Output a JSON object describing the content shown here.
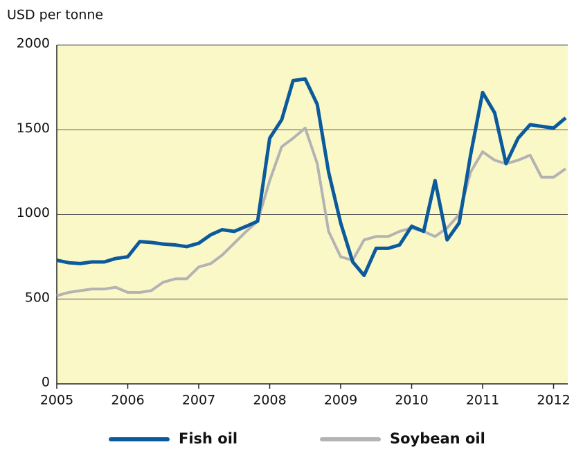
{
  "chart_data": {
    "type": "line",
    "y_label": "USD per tonne",
    "x": [
      2005,
      2005.17,
      2005.33,
      2005.5,
      2005.67,
      2005.83,
      2006,
      2006.17,
      2006.33,
      2006.5,
      2006.67,
      2006.83,
      2007,
      2007.17,
      2007.33,
      2007.5,
      2007.67,
      2007.83,
      2008,
      2008.17,
      2008.33,
      2008.5,
      2008.67,
      2008.83,
      2009,
      2009.17,
      2009.33,
      2009.5,
      2009.67,
      2009.83,
      2010,
      2010.17,
      2010.33,
      2010.5,
      2010.67,
      2010.83,
      2011,
      2011.17,
      2011.33,
      2011.5,
      2011.67,
      2011.83,
      2012,
      2012.17
    ],
    "series": [
      {
        "name": "Soybean oil",
        "color": "#b3b3b3",
        "values": [
          520,
          540,
          550,
          560,
          560,
          570,
          540,
          540,
          550,
          600,
          620,
          620,
          690,
          710,
          760,
          830,
          900,
          960,
          1200,
          1400,
          1450,
          1510,
          1300,
          900,
          750,
          730,
          850,
          870,
          870,
          900,
          920,
          900,
          870,
          920,
          1000,
          1250,
          1370,
          1320,
          1300,
          1320,
          1350,
          1220,
          1220,
          1270
        ]
      },
      {
        "name": "Fish oil",
        "color": "#0b5a9c",
        "values": [
          730,
          715,
          710,
          720,
          720,
          740,
          750,
          840,
          835,
          825,
          820,
          810,
          830,
          880,
          910,
          900,
          930,
          960,
          1450,
          1560,
          1790,
          1800,
          1650,
          1250,
          950,
          720,
          640,
          800,
          800,
          820,
          930,
          900,
          1200,
          850,
          950,
          1350,
          1720,
          1600,
          1300,
          1450,
          1530,
          1520,
          1510,
          1570
        ]
      }
    ],
    "legend_order": [
      "Fish oil",
      "Soybean oil"
    ],
    "xlim": [
      2005,
      2012.2
    ],
    "xticks": [
      2005,
      2006,
      2007,
      2008,
      2009,
      2010,
      2011,
      2012
    ],
    "ylim": [
      0,
      2000
    ],
    "yticks": [
      0,
      500,
      1000,
      1500,
      2000
    ],
    "grid": true,
    "background": "#fbf8c8"
  }
}
